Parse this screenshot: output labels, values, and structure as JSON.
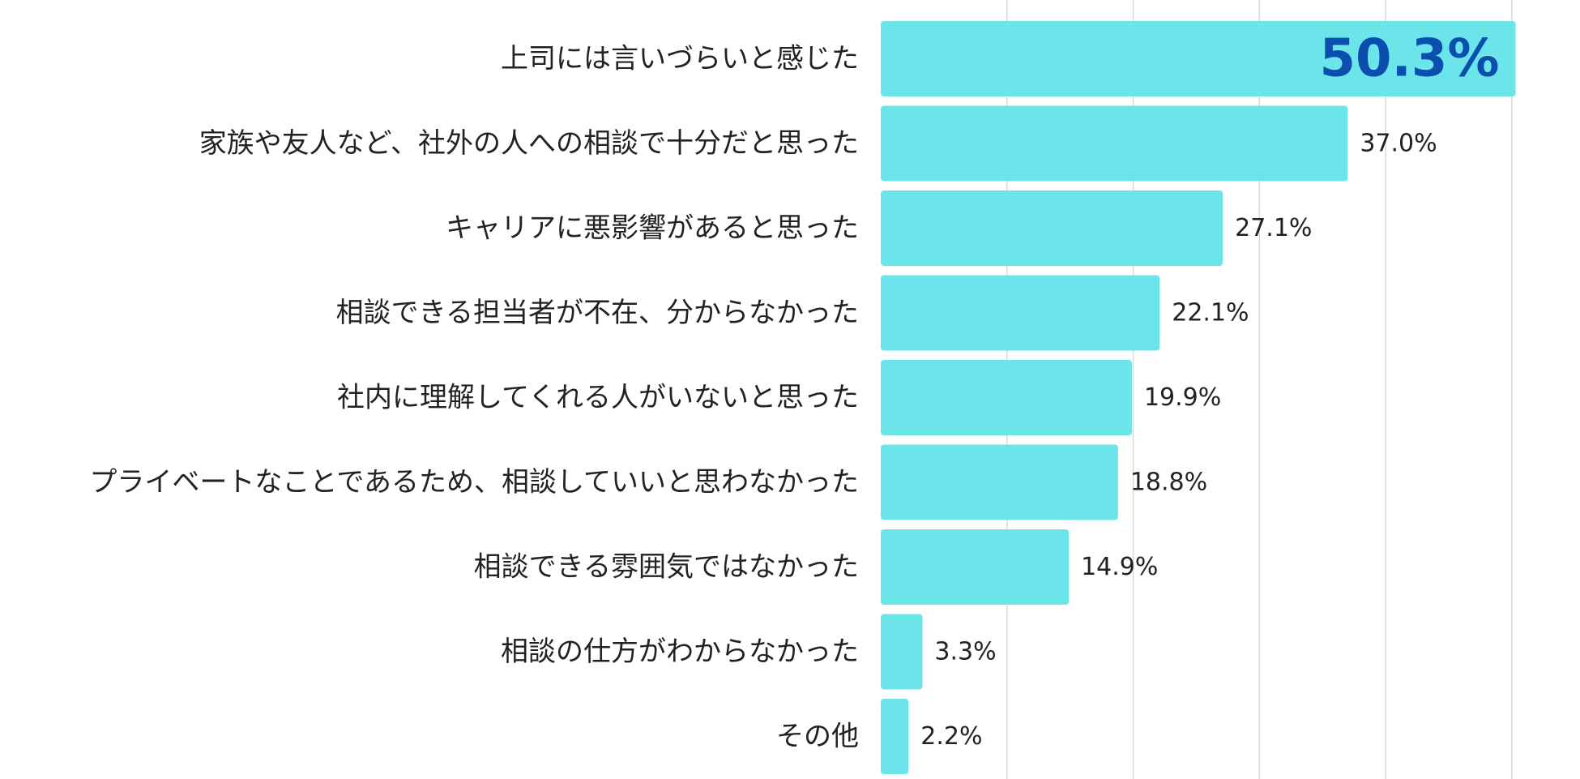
{
  "chart_data": {
    "type": "bar",
    "orientation": "horizontal",
    "title": "",
    "xlabel": "",
    "ylabel": "",
    "xlim": [
      0,
      52
    ],
    "grid": true,
    "legend": "none",
    "bar_color": "#6ce5ea",
    "highlight_color": "#0b4fae",
    "categories": [
      "上司には言いづらいと感じた",
      "家族や友人など、社外の人への相談で十分だと思った",
      "キャリアに悪影響があると思った",
      "相談できる担当者が不在、分からなかった",
      "社内に理解してくれる人がいないと思った",
      "プライベートなことであるため、相談していいと思わなかった",
      "相談できる雰囲気ではなかった",
      "相談の仕方がわからなかった",
      "その他"
    ],
    "values": [
      50.3,
      37.0,
      27.1,
      22.1,
      19.9,
      18.8,
      14.9,
      3.3,
      2.2
    ],
    "value_labels": [
      "50.3%",
      "37.0%",
      "27.1%",
      "22.1%",
      "19.9%",
      "18.8%",
      "14.9%",
      "3.3%",
      "2.2%"
    ]
  }
}
